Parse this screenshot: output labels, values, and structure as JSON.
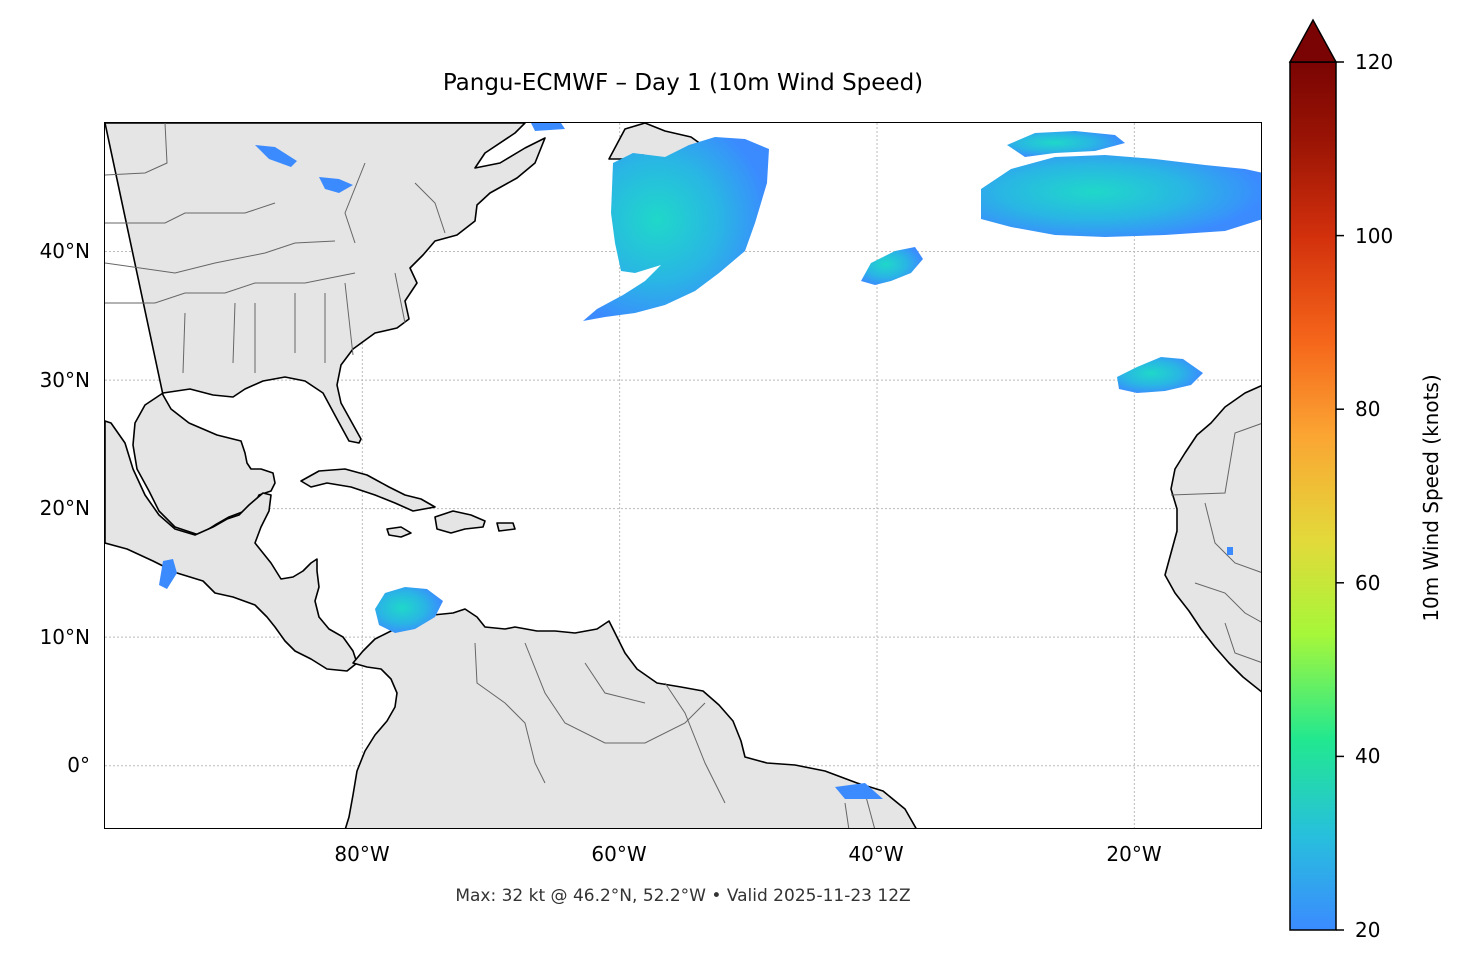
{
  "title": "Pangu-ECMWF – Day 1 (10m Wind Speed)",
  "footer": "Max: 32 kt @ 46.2°N, 52.2°W • Valid 2025-11-23 12Z",
  "map": {
    "extent_lon": [
      -100,
      -10
    ],
    "extent_lat": [
      -5,
      50
    ],
    "lon_ticks": [
      {
        "value": -80,
        "label": "80°W"
      },
      {
        "value": -60,
        "label": "60°W"
      },
      {
        "value": -40,
        "label": "40°W"
      },
      {
        "value": -20,
        "label": "20°W"
      }
    ],
    "lat_ticks": [
      {
        "value": 40,
        "label": "40°N"
      },
      {
        "value": 30,
        "label": "30°N"
      },
      {
        "value": 20,
        "label": "20°N"
      },
      {
        "value": 10,
        "label": "10°N"
      },
      {
        "value": 0,
        "label": "0°"
      }
    ],
    "land_color": "#e5e5e5",
    "ocean_color": "#ffffff"
  },
  "colorbar": {
    "label": "10m Wind Speed (knots)",
    "min": 20,
    "max": 120,
    "ticks": [
      {
        "value": 120,
        "label": "120"
      },
      {
        "value": 100,
        "label": "100"
      },
      {
        "value": 80,
        "label": "80"
      },
      {
        "value": 60,
        "label": "60"
      },
      {
        "value": 40,
        "label": "40"
      },
      {
        "value": 20,
        "label": "20"
      }
    ],
    "extend": "max",
    "colors": [
      "#3b8bff",
      "#27c0dc",
      "#22e88f",
      "#a6f73a",
      "#e3d93a",
      "#fba533",
      "#f5651a",
      "#d2300c",
      "#9a1405",
      "#7a0403"
    ]
  }
}
